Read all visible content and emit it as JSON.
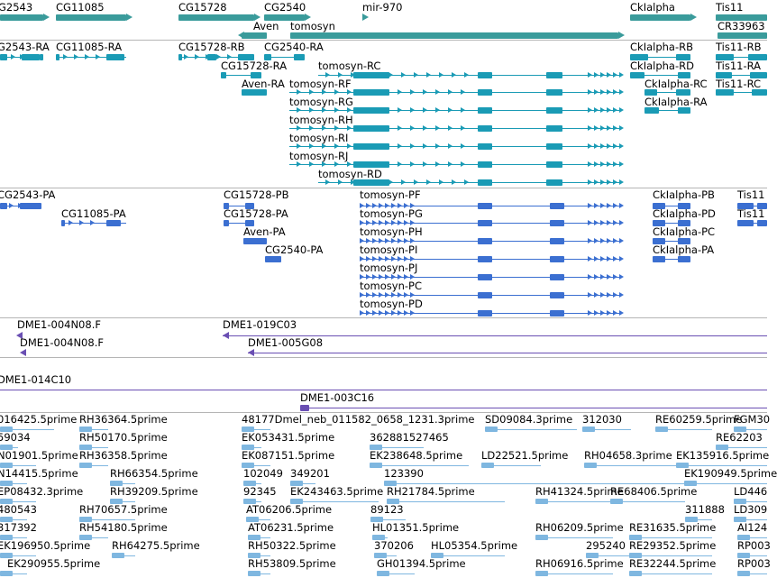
{
  "colors": {
    "gene": "#3a9b9b",
    "rna": "#1a9bb5",
    "protein": "#3b6fd1",
    "clone": "#6a4fb3",
    "est": "#7fb7e0",
    "separator": "#b5b5b5"
  },
  "tracks": {
    "genes": {
      "labels": [
        "G2543",
        "CG11085",
        "CG15728",
        "CG2540",
        "mir-970",
        "Aven",
        "tomosyn",
        "CkIalpha",
        "Tis11",
        "CR33963"
      ]
    },
    "rna": {
      "labels": [
        "G2543-RA",
        "CG11085-RA",
        "CG15728-RB",
        "CG2540-RA",
        "CG15728-RA",
        "Aven-RA",
        "tomosyn-RC",
        "tomosyn-RF",
        "tomosyn-RG",
        "tomosyn-RH",
        "tomosyn-RI",
        "tomosyn-RJ",
        "tomosyn-RD",
        "CkIalpha-RB",
        "CkIalpha-RD",
        "CkIalpha-RC",
        "CkIalpha-RA",
        "Tis11-RB",
        "Tis11-RA",
        "Tis11-RC"
      ]
    },
    "protein": {
      "labels": [
        "CG2543-PA",
        "CG11085-PA",
        "CG15728-PB",
        "CG15728-PA",
        "Aven-PA",
        "CG2540-PA",
        "tomosyn-PF",
        "tomosyn-PG",
        "tomosyn-PH",
        "tomosyn-PI",
        "tomosyn-PJ",
        "tomosyn-PC",
        "tomosyn-PD",
        "CkIalpha-PB",
        "CkIalpha-PD",
        "CkIalpha-PC",
        "CkIalpha-PA",
        "Tis11",
        "Tis11"
      ]
    },
    "clones_a": {
      "labels": [
        "DME1-004N08.F",
        "DME1-004N08.F",
        "DME1-019C03",
        "DME1-005G08"
      ]
    },
    "clones_b": {
      "labels": [
        "DME1-014C10",
        "DME1-003C16"
      ]
    },
    "ests": {
      "labels": [
        "016425.5prime",
        "RH36364.5prime",
        "48177Dmel_neb_011582_0658_1231.3prime",
        "SD09084.3prime",
        "312030",
        "RE60259.5prime",
        "FGM30",
        "59034",
        "RH50170.5prime",
        "EK053431.5prime",
        "362881527465",
        "RE62203",
        "N01901.5prime",
        "RH36358.5prime",
        "EK087151.5prime",
        "EK238648.5prime",
        "LD22521.5prime",
        "RH04658.3prime",
        "EK135916.5prime",
        "N14415.5prime",
        "RH66354.5prime",
        "102049",
        "349201",
        "123390",
        "EK190949.5prime",
        "EP08432.3prime",
        "RH39209.5prime",
        "92345",
        "EK243463.5prime",
        "RH21784.5prime",
        "RH41324.5prime",
        "RE68406.5prime",
        "LD446",
        "480543",
        "RH70657.5prime",
        "AT06206.5prime",
        "89123",
        "311888",
        "LD309",
        "317392",
        "RH54180.5prime",
        "AT06231.5prime",
        "HL01351.5prime",
        "RH06209.5prime",
        "RE31635.5prime",
        "AI124",
        "EK196950.5prime",
        "RH64275.5prime",
        "RH50322.5prime",
        "370206",
        "HL05354.5prime",
        "295240",
        "RE29352.5prime",
        "RP003",
        "EK290955.5prime",
        "RH53809.5prime",
        "GH01394.5prime",
        "RH06916.5prime",
        "RE32244.5prime",
        "RP003"
      ]
    }
  }
}
